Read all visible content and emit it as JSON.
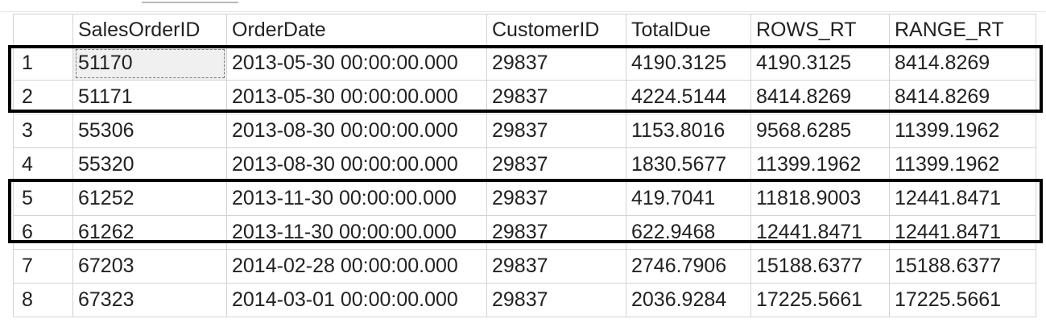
{
  "columns": [
    "",
    "SalesOrderID",
    "OrderDate",
    "CustomerID",
    "TotalDue",
    "ROWS_RT",
    "RANGE_RT"
  ],
  "rows": [
    [
      "1",
      "51170",
      "2013-05-30 00:00:00.000",
      "29837",
      "4190.3125",
      "4190.3125",
      "8414.8269"
    ],
    [
      "2",
      "51171",
      "2013-05-30 00:00:00.000",
      "29837",
      "4224.5144",
      "8414.8269",
      "8414.8269"
    ],
    [
      "3",
      "55306",
      "2013-08-30 00:00:00.000",
      "29837",
      "1153.8016",
      "9568.6285",
      "11399.1962"
    ],
    [
      "4",
      "55320",
      "2013-08-30 00:00:00.000",
      "29837",
      "1830.5677",
      "11399.1962",
      "11399.1962"
    ],
    [
      "5",
      "61252",
      "2013-11-30 00:00:00.000",
      "29837",
      "419.7041",
      "11818.9003",
      "12441.8471"
    ],
    [
      "6",
      "61262",
      "2013-11-30 00:00:00.000",
      "29837",
      "622.9468",
      "12441.8471",
      "12441.8471"
    ],
    [
      "7",
      "67203",
      "2014-02-28 00:00:00.000",
      "29837",
      "2746.7906",
      "15188.6377",
      "15188.6377"
    ],
    [
      "8",
      "67323",
      "2014-03-01 00:00:00.000",
      "29837",
      "2036.9284",
      "17225.5661",
      "17225.5661"
    ]
  ],
  "highlight_color": "#000000"
}
